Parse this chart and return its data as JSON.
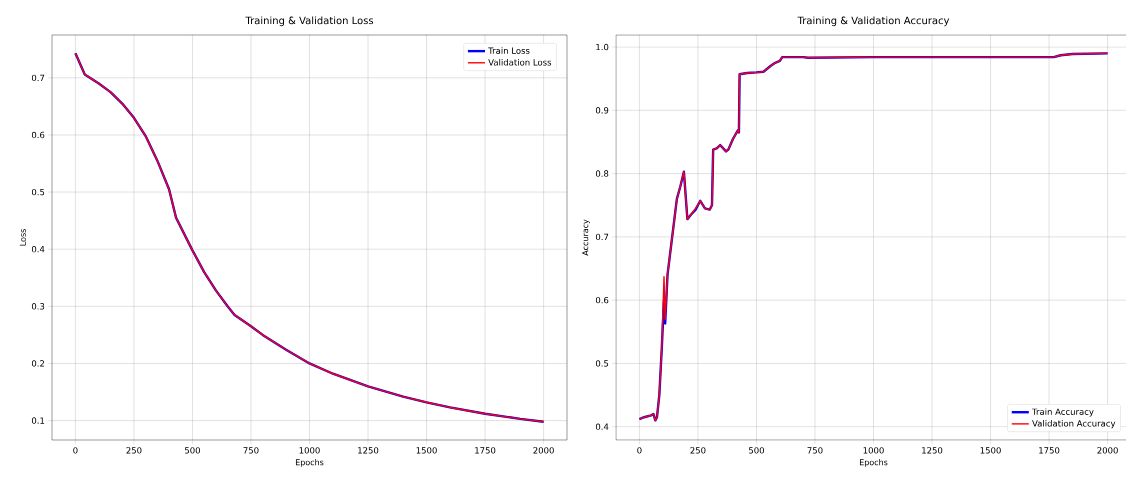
{
  "chart_data": [
    {
      "type": "line",
      "title": "Training & Validation   Loss",
      "xlabel": "Epochs",
      "ylabel": "Loss",
      "xlim": [
        -100,
        2100
      ],
      "ylim": [
        0.066,
        0.775
      ],
      "xticks": [
        0,
        250,
        500,
        750,
        1000,
        1250,
        1500,
        1750,
        2000
      ],
      "yticks": [
        0.1,
        0.2,
        0.3,
        0.4,
        0.5,
        0.6,
        0.7
      ],
      "grid": true,
      "legend": "top right",
      "x": [
        0,
        40,
        100,
        150,
        200,
        250,
        300,
        350,
        400,
        430,
        500,
        550,
        600,
        650,
        680,
        750,
        800,
        900,
        1000,
        1100,
        1250,
        1400,
        1500,
        1600,
        1750,
        1900,
        2000
      ],
      "series": [
        {
          "name": "Train Loss",
          "color": "#0000ff",
          "values": [
            0.743,
            0.706,
            0.69,
            0.675,
            0.655,
            0.63,
            0.598,
            0.555,
            0.505,
            0.455,
            0.398,
            0.36,
            0.328,
            0.3,
            0.285,
            0.265,
            0.25,
            0.224,
            0.2,
            0.182,
            0.16,
            0.142,
            0.132,
            0.123,
            0.112,
            0.103,
            0.098
          ]
        },
        {
          "name": "Validation Loss",
          "color": "#ff0000",
          "values": [
            0.743,
            0.706,
            0.69,
            0.675,
            0.655,
            0.63,
            0.598,
            0.555,
            0.505,
            0.455,
            0.398,
            0.36,
            0.328,
            0.3,
            0.285,
            0.265,
            0.25,
            0.224,
            0.2,
            0.182,
            0.16,
            0.142,
            0.132,
            0.123,
            0.112,
            0.103,
            0.098
          ]
        }
      ]
    },
    {
      "type": "line",
      "title": "Training & Validation Accuracy",
      "xlabel": "Epochs",
      "ylabel": "Accuracy",
      "xlim": [
        -100,
        2100
      ],
      "ylim": [
        0.379,
        1.019
      ],
      "xticks": [
        0,
        250,
        500,
        750,
        1000,
        1250,
        1500,
        1750,
        2000
      ],
      "yticks": [
        0.4,
        0.5,
        0.6,
        0.7,
        0.8,
        0.9,
        {
          "value": 1.0,
          "label": "1.0"
        }
      ],
      "grid": true,
      "legend": "bottom right",
      "x": [
        0,
        20,
        50,
        60,
        68,
        75,
        85,
        95,
        105,
        110,
        120,
        140,
        160,
        175,
        190,
        205,
        220,
        240,
        260,
        280,
        300,
        310,
        315,
        330,
        345,
        370,
        380,
        400,
        420,
        425,
        428,
        460,
        500,
        530,
        560,
        580,
        600,
        610,
        700,
        720,
        1000,
        1770,
        1800,
        1850,
        2000
      ],
      "series": [
        {
          "name": "Train Accuracy",
          "color": "#0000ff",
          "values": [
            0.412,
            0.415,
            0.418,
            0.42,
            0.41,
            0.415,
            0.45,
            0.52,
            0.6,
            0.563,
            0.64,
            0.7,
            0.76,
            0.78,
            0.803,
            0.728,
            0.735,
            0.743,
            0.757,
            0.745,
            0.743,
            0.75,
            0.838,
            0.84,
            0.845,
            0.835,
            0.838,
            0.855,
            0.868,
            0.865,
            0.957,
            0.959,
            0.96,
            0.961,
            0.97,
            0.975,
            0.978,
            0.984,
            0.984,
            0.983,
            0.984,
            0.984,
            0.987,
            0.989,
            0.99
          ]
        },
        {
          "name": "Validation Accuracy",
          "color": "#ff0000",
          "values": [
            0.412,
            0.415,
            0.418,
            0.42,
            0.41,
            0.415,
            0.45,
            0.52,
            0.637,
            0.57,
            0.64,
            0.7,
            0.76,
            0.78,
            0.803,
            0.728,
            0.735,
            0.745,
            0.757,
            0.745,
            0.743,
            0.75,
            0.838,
            0.84,
            0.845,
            0.835,
            0.838,
            0.855,
            0.868,
            0.865,
            0.957,
            0.959,
            0.96,
            0.961,
            0.97,
            0.975,
            0.978,
            0.984,
            0.984,
            0.983,
            0.984,
            0.984,
            0.987,
            0.989,
            0.99
          ]
        }
      ]
    }
  ]
}
